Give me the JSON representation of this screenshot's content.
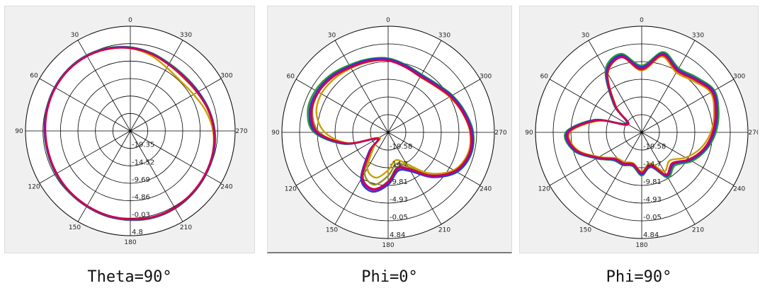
{
  "colors": {
    "background": "#f0f0f0",
    "circle_fill": "#ffffff",
    "grid": "#000000",
    "series": [
      "#2ca02c",
      "#8e8e2a",
      "#c8a000",
      "#1f3fd0",
      "#b000b0",
      "#d0004a",
      "#a64010"
    ]
  },
  "chart_data": [
    {
      "type": "polar",
      "caption": "Theta=90°",
      "angle_labels": [
        "0",
        "30",
        "60",
        "90",
        "120",
        "150",
        "180",
        "210",
        "240",
        "270",
        "300",
        "330"
      ],
      "radial_tick_labels": [
        "-19.35",
        "-14.52",
        "-9.69",
        "-4.86",
        "-0.03",
        "4.8"
      ],
      "rlim": [
        -24.18,
        4.8
      ],
      "grid": true,
      "series": [
        {
          "angles": [
            0,
            15,
            30,
            45,
            60,
            75,
            90,
            105,
            120,
            135,
            150,
            165,
            180,
            195,
            210,
            225,
            240,
            255,
            270,
            285,
            300,
            315,
            330,
            345
          ],
          "values": [
            -1.0,
            -0.4,
            0.0,
            0.1,
            0.0,
            -0.2,
            -0.4,
            -0.5,
            -0.4,
            -0.2,
            0.0,
            0.3,
            0.5,
            0.7,
            0.6,
            0.3,
            0.0,
            -0.3,
            -0.8,
            -1.6,
            -2.4,
            -2.8,
            -2.6,
            -1.8
          ]
        },
        {
          "angles": [
            0,
            15,
            30,
            45,
            60,
            75,
            90,
            105,
            120,
            135,
            150,
            165,
            180,
            195,
            210,
            225,
            240,
            255,
            270,
            285,
            300,
            315,
            330,
            345
          ],
          "values": [
            -1.2,
            -0.6,
            -0.2,
            0.0,
            -0.1,
            -0.3,
            -0.5,
            -0.6,
            -0.5,
            -0.3,
            -0.1,
            0.2,
            0.4,
            0.6,
            0.5,
            0.2,
            -0.1,
            -0.4,
            -1.0,
            -1.9,
            -2.9,
            -3.4,
            -3.0,
            -2.0
          ]
        },
        {
          "angles": [
            0,
            15,
            30,
            45,
            60,
            75,
            90,
            105,
            120,
            135,
            150,
            165,
            180,
            195,
            210,
            225,
            240,
            255,
            270,
            285,
            300,
            315,
            330,
            345
          ],
          "values": [
            -1.3,
            -0.7,
            -0.3,
            -0.1,
            -0.2,
            -0.4,
            -0.6,
            -0.7,
            -0.6,
            -0.4,
            -0.2,
            0.1,
            0.3,
            0.5,
            0.4,
            0.1,
            -0.2,
            -0.6,
            -1.3,
            -2.6,
            -4.0,
            -4.6,
            -4.0,
            -2.5
          ]
        },
        {
          "angles": [
            0,
            15,
            30,
            45,
            60,
            75,
            90,
            105,
            120,
            135,
            150,
            165,
            180,
            195,
            210,
            225,
            240,
            255,
            270,
            285,
            300,
            315,
            330,
            345
          ],
          "values": [
            -1.1,
            -0.5,
            -0.1,
            0.0,
            -0.1,
            -0.3,
            -0.5,
            -0.6,
            -0.5,
            -0.3,
            -0.1,
            0.2,
            0.4,
            0.6,
            0.5,
            0.2,
            -0.1,
            -0.4,
            -0.9,
            -1.7,
            -2.5,
            -3.0,
            -2.8,
            -1.9
          ]
        },
        {
          "angles": [
            0,
            15,
            30,
            45,
            60,
            75,
            90,
            105,
            120,
            135,
            150,
            165,
            180,
            195,
            210,
            225,
            240,
            255,
            270,
            285,
            300,
            315,
            330,
            345
          ],
          "values": [
            -1.2,
            -0.6,
            -0.2,
            -0.1,
            -0.2,
            -0.4,
            -0.6,
            -0.7,
            -0.6,
            -0.4,
            -0.2,
            0.1,
            0.3,
            0.5,
            0.4,
            0.1,
            -0.2,
            -0.5,
            -1.0,
            -1.8,
            -2.7,
            -3.1,
            -2.9,
            -2.0
          ]
        },
        {
          "angles": [
            0,
            15,
            30,
            45,
            60,
            75,
            90,
            105,
            120,
            135,
            150,
            165,
            180,
            195,
            210,
            225,
            240,
            255,
            270,
            285,
            300,
            315,
            330,
            345
          ],
          "values": [
            -1.3,
            -0.7,
            -0.3,
            -0.2,
            -0.3,
            -0.5,
            -0.7,
            -0.8,
            -0.7,
            -0.5,
            -0.3,
            0.0,
            0.2,
            0.4,
            0.3,
            0.0,
            -0.3,
            -0.6,
            -1.1,
            -1.9,
            -2.8,
            -3.2,
            -3.0,
            -2.1
          ]
        }
      ]
    },
    {
      "type": "polar",
      "caption": "Phi=0°",
      "angle_labels": [
        "0",
        "30",
        "60",
        "90",
        "120",
        "150",
        "180",
        "210",
        "240",
        "270",
        "300",
        "330"
      ],
      "radial_tick_labels": [
        "-19.58",
        "-14.7",
        "-9.81",
        "-4.93",
        "-0.05",
        "4.84"
      ],
      "rlim": [
        -24.46,
        4.84
      ],
      "grid": true,
      "series": [
        {
          "angles": [
            0,
            15,
            30,
            45,
            60,
            75,
            90,
            105,
            120,
            135,
            150,
            165,
            180,
            195,
            210,
            225,
            240,
            255,
            270,
            285,
            300,
            315,
            330,
            345
          ],
          "values": [
            -4.0,
            -3.5,
            -3.0,
            -2.0,
            -1.3,
            -1.5,
            -4.0,
            -12.0,
            -21.0,
            -18.0,
            -10.5,
            -8.0,
            -11.0,
            -14.5,
            -12.5,
            -7.0,
            -2.5,
            -0.8,
            -1.0,
            -2.5,
            -4.0,
            -5.5,
            -6.0,
            -5.2
          ]
        },
        {
          "angles": [
            0,
            15,
            30,
            45,
            60,
            75,
            90,
            105,
            120,
            135,
            150,
            165,
            180,
            195,
            210,
            225,
            240,
            255,
            270,
            285,
            300,
            315,
            330,
            345
          ],
          "values": [
            -4.4,
            -4.0,
            -3.6,
            -2.8,
            -2.3,
            -2.8,
            -5.5,
            -12.5,
            -21.0,
            -18.5,
            -11.5,
            -9.5,
            -12.5,
            -15.5,
            -13.5,
            -7.8,
            -3.2,
            -1.4,
            -1.6,
            -3.0,
            -4.6,
            -6.0,
            -6.5,
            -5.6
          ]
        },
        {
          "angles": [
            0,
            15,
            30,
            45,
            60,
            75,
            90,
            105,
            120,
            135,
            150,
            165,
            180,
            195,
            210,
            225,
            240,
            255,
            270,
            285,
            300,
            315,
            330,
            345
          ],
          "values": [
            -4.6,
            -4.3,
            -4.0,
            -3.5,
            -3.2,
            -4.0,
            -7.0,
            -13.0,
            -21.5,
            -19.0,
            -13.0,
            -11.5,
            -14.0,
            -16.5,
            -14.5,
            -8.5,
            -3.6,
            -1.7,
            -1.9,
            -3.3,
            -4.9,
            -6.3,
            -6.8,
            -5.9
          ]
        },
        {
          "angles": [
            0,
            15,
            30,
            45,
            60,
            75,
            90,
            105,
            120,
            135,
            150,
            165,
            180,
            195,
            210,
            225,
            240,
            255,
            270,
            285,
            300,
            315,
            330,
            345
          ],
          "values": [
            -4.2,
            -3.7,
            -3.3,
            -2.4,
            -1.8,
            -2.0,
            -4.4,
            -12.2,
            -20.8,
            -17.0,
            -9.5,
            -7.5,
            -10.0,
            -13.5,
            -12.0,
            -6.9,
            -2.6,
            -0.9,
            -1.2,
            -2.7,
            -4.2,
            -5.7,
            -6.2,
            -5.4
          ]
        },
        {
          "angles": [
            0,
            15,
            30,
            45,
            60,
            75,
            90,
            105,
            120,
            135,
            150,
            165,
            180,
            195,
            210,
            225,
            240,
            255,
            270,
            285,
            300,
            315,
            330,
            345
          ],
          "values": [
            -4.5,
            -4.0,
            -3.6,
            -2.7,
            -2.1,
            -2.4,
            -4.8,
            -12.6,
            -21.0,
            -17.5,
            -10.0,
            -8.0,
            -10.5,
            -14.0,
            -12.5,
            -7.3,
            -3.0,
            -1.2,
            -1.5,
            -3.0,
            -4.5,
            -6.0,
            -6.5,
            -5.7
          ]
        },
        {
          "angles": [
            0,
            15,
            30,
            45,
            60,
            75,
            90,
            105,
            120,
            135,
            150,
            165,
            180,
            195,
            210,
            225,
            240,
            255,
            270,
            285,
            300,
            315,
            330,
            345
          ],
          "values": [
            -4.7,
            -4.2,
            -3.8,
            -2.9,
            -2.3,
            -2.6,
            -5.0,
            -12.8,
            -21.2,
            -17.8,
            -10.3,
            -8.3,
            -10.8,
            -14.3,
            -12.8,
            -7.6,
            -3.2,
            -1.4,
            -1.7,
            -3.2,
            -4.7,
            -6.2,
            -6.7,
            -5.9
          ]
        }
      ]
    },
    {
      "type": "polar",
      "caption": "Phi=90°",
      "angle_labels": [
        "0",
        "30",
        "60",
        "90",
        "120",
        "150",
        "180",
        "210",
        "240",
        "270",
        "300",
        "330"
      ],
      "radial_tick_labels": [
        "-19.58",
        "-14.7",
        "-9.81",
        "-4.93",
        "-0.05",
        "4.84"
      ],
      "rlim": [
        -24.46,
        4.84
      ],
      "grid": true,
      "series": [
        {
          "angles": [
            0,
            15,
            30,
            45,
            60,
            75,
            90,
            105,
            120,
            135,
            150,
            165,
            180,
            195,
            210,
            225,
            240,
            255,
            270,
            285,
            300,
            315,
            330,
            345
          ],
          "values": [
            -6.0,
            -2.0,
            -4.5,
            -13.5,
            -19.5,
            -11.0,
            -3.5,
            -5.0,
            -10.0,
            -13.5,
            -14.0,
            -14.8,
            -12.5,
            -14.5,
            -10.0,
            -11.5,
            -8.5,
            -6.0,
            -4.0,
            -2.5,
            -1.3,
            -3.0,
            -4.0,
            -1.5
          ]
        },
        {
          "angles": [
            0,
            15,
            30,
            45,
            60,
            75,
            90,
            105,
            120,
            135,
            150,
            165,
            180,
            195,
            210,
            225,
            240,
            255,
            270,
            285,
            300,
            315,
            330,
            345
          ],
          "values": [
            -6.8,
            -2.6,
            -5.2,
            -14.0,
            -19.8,
            -11.6,
            -4.2,
            -5.6,
            -10.5,
            -14.0,
            -14.5,
            -15.2,
            -13.0,
            -15.0,
            -11.0,
            -12.5,
            -9.5,
            -6.8,
            -4.8,
            -3.2,
            -2.0,
            -3.8,
            -4.8,
            -2.2
          ]
        },
        {
          "angles": [
            0,
            15,
            30,
            45,
            60,
            75,
            90,
            105,
            120,
            135,
            150,
            165,
            180,
            195,
            210,
            225,
            240,
            255,
            270,
            285,
            300,
            315,
            330,
            345
          ],
          "values": [
            -7.4,
            -3.0,
            -5.8,
            -14.6,
            -20.2,
            -12.2,
            -4.6,
            -6.0,
            -10.9,
            -14.4,
            -15.0,
            -15.6,
            -13.6,
            -15.6,
            -12.0,
            -13.5,
            -10.5,
            -7.6,
            -5.4,
            -3.8,
            -2.5,
            -4.4,
            -5.4,
            -2.8
          ]
        },
        {
          "angles": [
            0,
            15,
            30,
            45,
            60,
            75,
            90,
            105,
            120,
            135,
            150,
            165,
            180,
            195,
            210,
            225,
            240,
            255,
            270,
            285,
            300,
            315,
            330,
            345
          ],
          "values": [
            -6.4,
            -2.4,
            -5.0,
            -13.8,
            -19.6,
            -11.2,
            -3.8,
            -5.2,
            -10.2,
            -13.7,
            -14.2,
            -15.0,
            -12.8,
            -14.6,
            -10.5,
            -12.0,
            -9.0,
            -6.3,
            -4.4,
            -2.9,
            -1.6,
            -3.4,
            -4.4,
            -1.9
          ]
        },
        {
          "angles": [
            0,
            15,
            30,
            45,
            60,
            75,
            90,
            105,
            120,
            135,
            150,
            165,
            180,
            195,
            210,
            225,
            240,
            255,
            270,
            285,
            300,
            315,
            330,
            345
          ],
          "values": [
            -6.8,
            -2.8,
            -5.4,
            -14.1,
            -19.9,
            -11.5,
            -4.1,
            -5.5,
            -10.4,
            -13.9,
            -14.4,
            -15.2,
            -13.1,
            -14.9,
            -10.8,
            -12.3,
            -9.3,
            -6.6,
            -4.7,
            -3.2,
            -1.9,
            -3.7,
            -4.7,
            -2.2
          ]
        },
        {
          "angles": [
            0,
            15,
            30,
            45,
            60,
            75,
            90,
            105,
            120,
            135,
            150,
            165,
            180,
            195,
            210,
            225,
            240,
            255,
            270,
            285,
            300,
            315,
            330,
            345
          ],
          "values": [
            -7.1,
            -3.0,
            -5.6,
            -14.3,
            -20.1,
            -11.8,
            -4.3,
            -5.7,
            -10.6,
            -14.1,
            -14.6,
            -15.4,
            -13.3,
            -15.1,
            -11.0,
            -12.5,
            -9.5,
            -6.8,
            -4.9,
            -3.4,
            -2.1,
            -3.9,
            -4.9,
            -2.4
          ]
        }
      ]
    }
  ]
}
